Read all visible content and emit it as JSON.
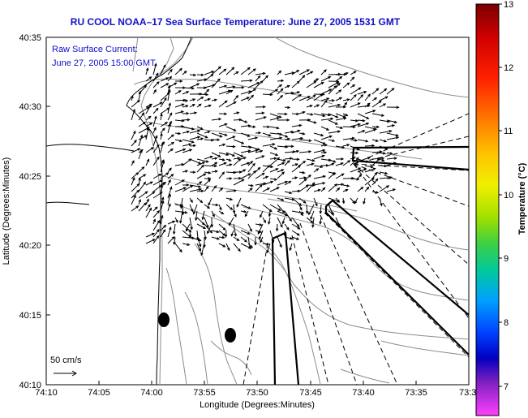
{
  "title": "RU COOL  NOAA–17  Sea Surface Temperature:  June 27, 2005 1531 GMT",
  "legend": {
    "line1": "Raw Surface Current:",
    "line2": "June 27, 2005 15:00 GMT"
  },
  "scale_label": "50 cm/s",
  "x_axis": {
    "label": "Longitude (Degrees:Minutes)",
    "ticks": [
      "74:10",
      "74:05",
      "74:00",
      "73:55",
      "73:50",
      "73:45",
      "73:40",
      "73:35",
      "73:3"
    ]
  },
  "y_axis": {
    "label": "Latitude (Degrees:Minutes)",
    "ticks": [
      "40:35",
      "40:30",
      "40:25",
      "40:20",
      "40:15",
      "40:10"
    ]
  },
  "colorbar": {
    "label": "Temperature (°C)",
    "ticks": [
      "13",
      "12",
      "11",
      "10",
      "9",
      "8",
      "7"
    ],
    "colors": [
      "#7a0000",
      "#d00000",
      "#ff2000",
      "#ff7000",
      "#ffc000",
      "#f0f000",
      "#a0e000",
      "#40d040",
      "#00c8a0",
      "#00a0ff",
      "#0040ff",
      "#0000c0",
      "#8020c0",
      "#ff40ff"
    ]
  },
  "chart_data": {
    "type": "map",
    "title": "RU COOL  NOAA–17  Sea Surface Temperature:  June 27, 2005 1531 GMT",
    "xlabel": "Longitude (Degrees:Minutes)",
    "ylabel": "Latitude (Degrees:Minutes)",
    "colorbar_range_celsius": [
      7,
      13
    ],
    "layers": [
      "coastline",
      "bathymetry contours",
      "surface current vectors",
      "shipping lanes",
      "sites"
    ]
  }
}
